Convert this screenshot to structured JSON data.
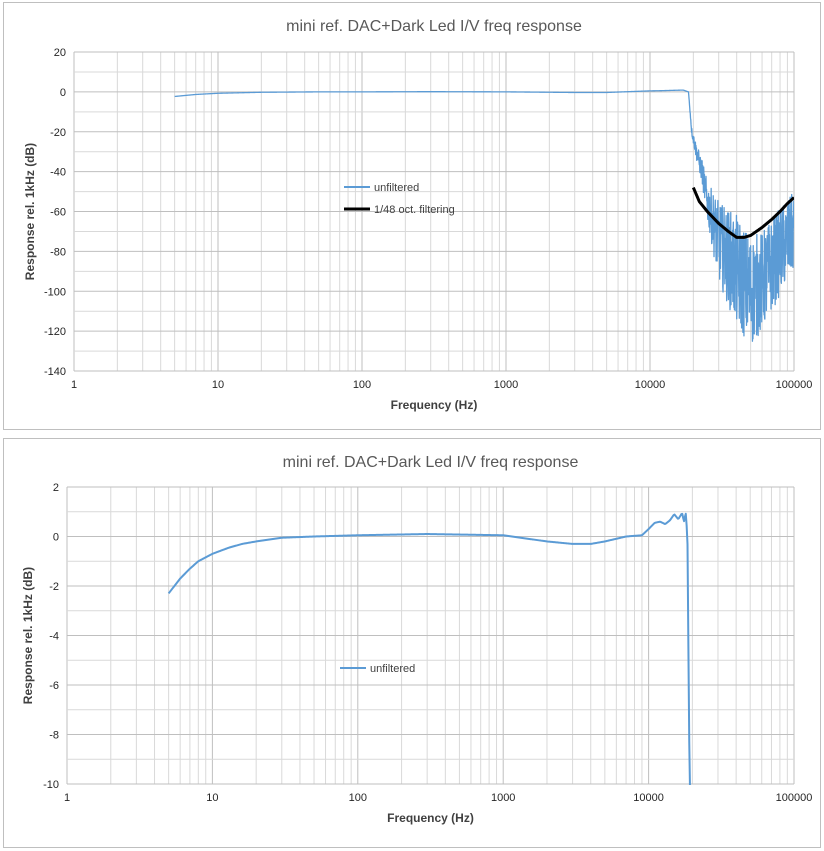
{
  "chart_data": [
    {
      "type": "line",
      "title": "mini ref. DAC+Dark Led I/V freq response",
      "xlabel": "Frequency (Hz)",
      "ylabel": "Response rel. 1kHz (dB)",
      "xscale": "log",
      "xlim": [
        1,
        100000
      ],
      "ylim": [
        -140,
        20
      ],
      "x_ticks": [
        "1",
        "10",
        "100",
        "1000",
        "10000",
        "100000"
      ],
      "y_ticks": [
        "20",
        "0",
        "-20",
        "-40",
        "-60",
        "-80",
        "-100",
        "-120",
        "-140"
      ],
      "grid": true,
      "legend_position": "center-left",
      "series": [
        {
          "name": "unfiltered",
          "color": "#5b9bd5",
          "x": [
            5,
            7,
            10,
            20,
            50,
            100,
            300,
            1000,
            3000,
            5000,
            10000,
            12000,
            15000,
            17000,
            18500,
            19500,
            21000,
            23000,
            25000,
            30000,
            40000,
            50000,
            60000,
            80000,
            100000
          ],
          "y": [
            -2.3,
            -1.3,
            -0.7,
            -0.2,
            0,
            0,
            0.1,
            0,
            -0.3,
            -0.3,
            0.5,
            0.6,
            0.8,
            0.9,
            0,
            -20,
            -30,
            -40,
            -55,
            -75,
            -90,
            -100,
            -95,
            -80,
            -70
          ],
          "noise_amplitude": [
            0,
            0,
            0,
            0,
            0,
            0,
            0,
            0,
            0,
            0,
            0,
            0,
            0,
            0,
            0,
            2,
            4,
            6,
            10,
            20,
            28,
            28,
            25,
            22,
            20
          ]
        },
        {
          "name": "1/48 oct. filtering",
          "color": "#000000",
          "x": [
            20000,
            22000,
            25000,
            30000,
            35000,
            40000,
            45000,
            50000,
            60000,
            70000,
            80000,
            90000,
            100000
          ],
          "y": [
            -48,
            -55,
            -60,
            -66,
            -70,
            -73,
            -73,
            -72,
            -68,
            -64,
            -60,
            -56,
            -53
          ]
        }
      ]
    },
    {
      "type": "line",
      "title": "mini ref. DAC+Dark Led I/V freq response",
      "xlabel": "Frequency (Hz)",
      "ylabel": "Response rel. 1kHz (dB)",
      "xscale": "log",
      "xlim": [
        1,
        100000
      ],
      "ylim": [
        -10,
        2
      ],
      "x_ticks": [
        "1",
        "10",
        "100",
        "1000",
        "10000",
        "100000"
      ],
      "y_ticks": [
        "2",
        "0",
        "-2",
        "-4",
        "-6",
        "-8",
        "-10"
      ],
      "grid": true,
      "legend_position": "center-left",
      "series": [
        {
          "name": "unfiltered",
          "color": "#5b9bd5",
          "x": [
            5,
            6,
            7,
            8,
            10,
            13,
            16,
            20,
            30,
            50,
            100,
            300,
            1000,
            2000,
            3000,
            4000,
            5000,
            7000,
            9000,
            10000,
            11000,
            12000,
            13000,
            14000,
            15000,
            16000,
            17000,
            17500,
            18000,
            18500,
            19000,
            19300
          ],
          "y": [
            -2.3,
            -1.7,
            -1.3,
            -1.0,
            -0.7,
            -0.45,
            -0.3,
            -0.2,
            -0.05,
            0,
            0.05,
            0.1,
            0.05,
            -0.2,
            -0.3,
            -0.3,
            -0.2,
            0,
            0.05,
            0.3,
            0.55,
            0.6,
            0.5,
            0.65,
            0.9,
            0.7,
            0.95,
            0.6,
            0.95,
            0,
            -8,
            -10.5
          ]
        }
      ]
    }
  ]
}
